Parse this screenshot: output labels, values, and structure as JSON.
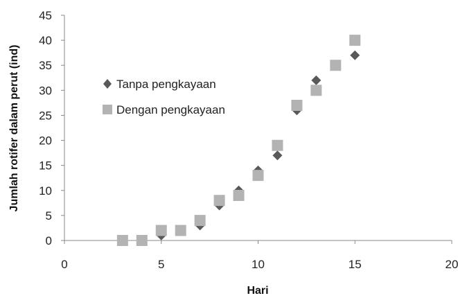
{
  "chart_data": {
    "type": "scatter",
    "xlabel": "Hari",
    "ylabel": "Jumlah rotifer dalam perut (ind)",
    "xlim": [
      0,
      20
    ],
    "ylim": [
      0,
      45
    ],
    "xticks": [
      "0",
      "5",
      "10",
      "15",
      "20"
    ],
    "yticks": [
      "0",
      "5",
      "10",
      "15",
      "20",
      "25",
      "30",
      "35",
      "40",
      "45"
    ],
    "grid": false,
    "legend_position": "upper-left",
    "series": [
      {
        "name": "Tanpa pengkayaan",
        "marker": "diamond",
        "color": "#595959",
        "points": [
          [
            3,
            0
          ],
          [
            4,
            0
          ],
          [
            5,
            1
          ],
          [
            6,
            2
          ],
          [
            7,
            3
          ],
          [
            8,
            7
          ],
          [
            9,
            10
          ],
          [
            10,
            14
          ],
          [
            11,
            17
          ],
          [
            12,
            26
          ],
          [
            13,
            32
          ],
          [
            14,
            35
          ],
          [
            15,
            37
          ]
        ]
      },
      {
        "name": "Dengan pengkayaan",
        "marker": "square",
        "color": "#b3b3b3",
        "points": [
          [
            3,
            0
          ],
          [
            4,
            0
          ],
          [
            5,
            2
          ],
          [
            6,
            2
          ],
          [
            7,
            4
          ],
          [
            8,
            8
          ],
          [
            9,
            9
          ],
          [
            10,
            13
          ],
          [
            11,
            19
          ],
          [
            12,
            27
          ],
          [
            13,
            30
          ],
          [
            14,
            35
          ],
          [
            15,
            40
          ]
        ]
      }
    ]
  }
}
